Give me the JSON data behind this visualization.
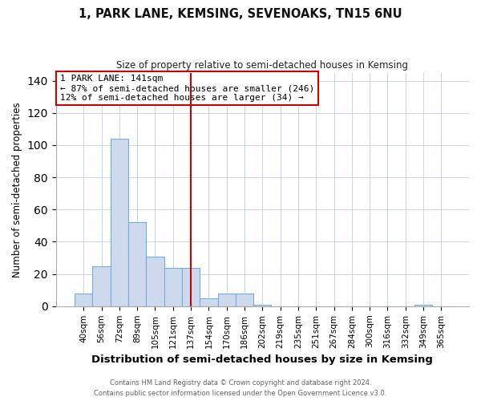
{
  "title": "1, PARK LANE, KEMSING, SEVENOAKS, TN15 6NU",
  "subtitle": "Size of property relative to semi-detached houses in Kemsing",
  "xlabel": "Distribution of semi-detached houses by size in Kemsing",
  "ylabel": "Number of semi-detached properties",
  "bar_color": "#cdd9ed",
  "bar_edge_color": "#7aadd4",
  "categories": [
    "40sqm",
    "56sqm",
    "72sqm",
    "89sqm",
    "105sqm",
    "121sqm",
    "137sqm",
    "154sqm",
    "170sqm",
    "186sqm",
    "202sqm",
    "219sqm",
    "235sqm",
    "251sqm",
    "267sqm",
    "284sqm",
    "300sqm",
    "316sqm",
    "332sqm",
    "349sqm",
    "365sqm"
  ],
  "values": [
    8,
    25,
    104,
    52,
    31,
    24,
    24,
    5,
    8,
    8,
    1,
    0,
    0,
    0,
    0,
    0,
    0,
    0,
    0,
    1,
    0
  ],
  "vline_color": "#cc0000",
  "annotation_title": "1 PARK LANE: 141sqm",
  "annotation_line1": "← 87% of semi-detached houses are smaller (246)",
  "annotation_line2": "12% of semi-detached houses are larger (34) →",
  "annotation_box_color": "#ffffff",
  "annotation_box_edge": "#cc0000",
  "ylim": [
    0,
    145
  ],
  "yticks": [
    0,
    20,
    40,
    60,
    80,
    100,
    120,
    140
  ],
  "footer1": "Contains HM Land Registry data © Crown copyright and database right 2024.",
  "footer2": "Contains public sector information licensed under the Open Government Licence v3.0."
}
